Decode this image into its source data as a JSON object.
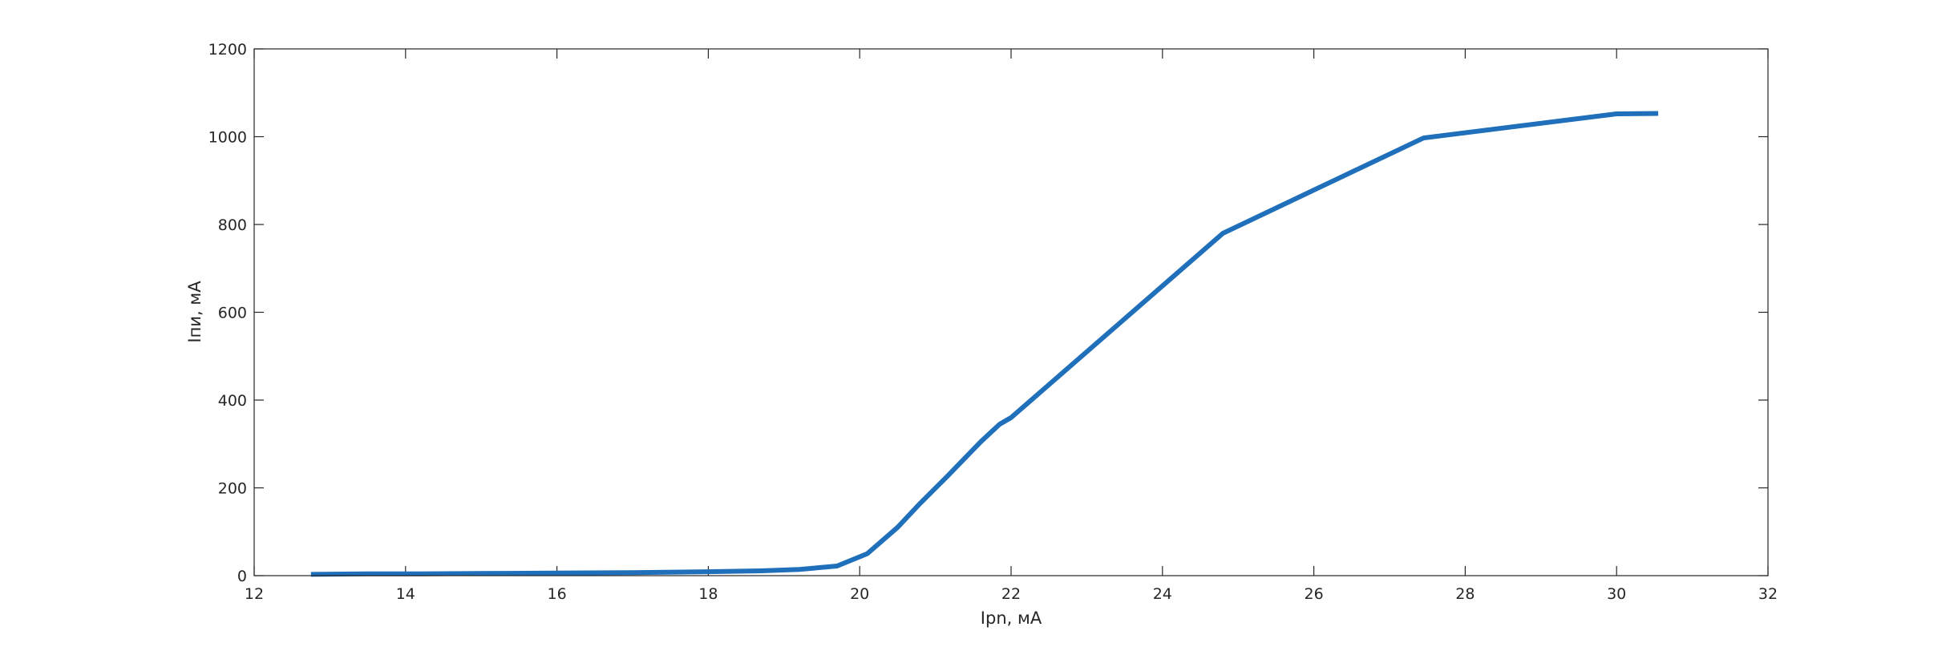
{
  "chart_data": {
    "type": "line",
    "title": "",
    "xlabel": "Ipn, мА",
    "ylabel": "Iпи, мА",
    "xlim": [
      12,
      32
    ],
    "ylim": [
      0,
      1200
    ],
    "xticks": [
      12,
      14,
      16,
      18,
      20,
      22,
      24,
      26,
      28,
      30,
      32
    ],
    "yticks": [
      0,
      200,
      400,
      600,
      800,
      1000,
      1200
    ],
    "grid": false,
    "line_color": "#1f6fba",
    "series": [
      {
        "x": [
          12.75,
          13.5,
          14.2,
          15.0,
          16.0,
          17.0,
          18.0,
          18.7,
          19.2,
          19.7,
          20.1,
          20.5,
          20.8,
          21.15,
          21.6,
          21.85,
          22.0,
          24.8,
          27.45,
          30.0,
          30.55
        ],
        "y": [
          3,
          4,
          4,
          5,
          6,
          7,
          9,
          11,
          14,
          22,
          50,
          110,
          165,
          225,
          305,
          345,
          360,
          780,
          997,
          1052,
          1053
        ]
      }
    ]
  }
}
